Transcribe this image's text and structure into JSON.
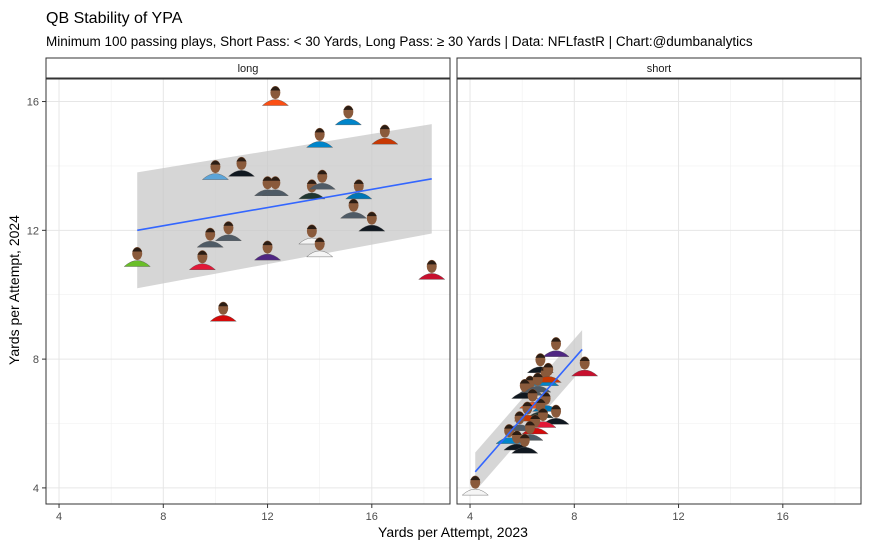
{
  "chart_data": {
    "type": "scatter",
    "title": "QB Stability of YPA",
    "subtitle": "Minimum 100 passing plays, Short Pass: < 30 Yards, Long Pass: ≥ 30 Yards | Data: NFLfastR | Chart:@dumbanalytics",
    "xlabel": "Yards per Attempt, 2023",
    "ylabel": "Yards per Attempt, 2024",
    "xlim": [
      3.5,
      19
    ],
    "ylim": [
      3.5,
      16.7
    ],
    "x_ticks": [
      "4",
      "8",
      "12",
      "16"
    ],
    "y_ticks": [
      "4",
      "8",
      "12",
      "16"
    ],
    "grid": true,
    "marker": "player-headshot",
    "panels": [
      {
        "label": "long",
        "points": [
          {
            "x": 12.3,
            "y": 16.0,
            "color": "#FB4F14"
          },
          {
            "x": 15.1,
            "y": 15.4,
            "color": "#0085CA"
          },
          {
            "x": 14.0,
            "y": 14.7,
            "color": "#0085CA"
          },
          {
            "x": 16.5,
            "y": 14.8,
            "color": "#C83803"
          },
          {
            "x": 10.0,
            "y": 13.7,
            "color": "#5CA5D9"
          },
          {
            "x": 11.0,
            "y": 13.8,
            "color": "#101820"
          },
          {
            "x": 12.0,
            "y": 13.2,
            "color": "#4F5B66"
          },
          {
            "x": 12.3,
            "y": 13.2,
            "color": "#4F5B66"
          },
          {
            "x": 13.7,
            "y": 13.1,
            "color": "#203731"
          },
          {
            "x": 15.5,
            "y": 13.1,
            "color": "#0076B6"
          },
          {
            "x": 14.1,
            "y": 13.4,
            "color": "#4F5B66"
          },
          {
            "x": 15.3,
            "y": 12.5,
            "color": "#4F5B66"
          },
          {
            "x": 16.0,
            "y": 12.1,
            "color": "#101820"
          },
          {
            "x": 9.8,
            "y": 11.6,
            "color": "#4F5B66"
          },
          {
            "x": 10.5,
            "y": 11.8,
            "color": "#4F5B66"
          },
          {
            "x": 12.0,
            "y": 11.2,
            "color": "#4F2683"
          },
          {
            "x": 13.7,
            "y": 11.7,
            "color": "#F5F5F5"
          },
          {
            "x": 14.0,
            "y": 11.3,
            "color": "#F5F5F5"
          },
          {
            "x": 7.0,
            "y": 11.0,
            "color": "#69BE28"
          },
          {
            "x": 9.5,
            "y": 10.9,
            "color": "#E31837"
          },
          {
            "x": 18.3,
            "y": 10.6,
            "color": "#C8102E"
          },
          {
            "x": 10.3,
            "y": 9.3,
            "color": "#D50A0A"
          }
        ],
        "trend": {
          "x": [
            7.0,
            18.3
          ],
          "y": [
            12.0,
            13.6
          ],
          "band_lower": [
            10.2,
            11.9
          ],
          "band_upper": [
            13.8,
            15.3
          ]
        }
      },
      {
        "label": "short",
        "points": [
          {
            "x": 7.3,
            "y": 8.2,
            "color": "#4F2683"
          },
          {
            "x": 8.4,
            "y": 7.6,
            "color": "#C8102E"
          },
          {
            "x": 6.7,
            "y": 7.7,
            "color": "#101820"
          },
          {
            "x": 6.9,
            "y": 7.3,
            "color": "#0085CA"
          },
          {
            "x": 7.0,
            "y": 7.4,
            "color": "#C83803"
          },
          {
            "x": 6.3,
            "y": 7.0,
            "color": "#4F5B66"
          },
          {
            "x": 6.1,
            "y": 6.9,
            "color": "#101820"
          },
          {
            "x": 6.6,
            "y": 7.1,
            "color": "#4F5B66"
          },
          {
            "x": 6.4,
            "y": 6.6,
            "color": "#FB4F14"
          },
          {
            "x": 6.9,
            "y": 6.5,
            "color": "#0076B6"
          },
          {
            "x": 7.3,
            "y": 6.1,
            "color": "#101820"
          },
          {
            "x": 6.7,
            "y": 6.3,
            "color": "#203731"
          },
          {
            "x": 6.2,
            "y": 6.2,
            "color": "#C83803"
          },
          {
            "x": 6.8,
            "y": 6.0,
            "color": "#E31837"
          },
          {
            "x": 5.9,
            "y": 5.9,
            "color": "#4F5B66"
          },
          {
            "x": 6.5,
            "y": 5.8,
            "color": "#D50A0A"
          },
          {
            "x": 5.5,
            "y": 5.5,
            "color": "#0085CA"
          },
          {
            "x": 6.3,
            "y": 5.6,
            "color": "#4F5B66"
          },
          {
            "x": 5.8,
            "y": 5.3,
            "color": "#101820"
          },
          {
            "x": 6.1,
            "y": 5.2,
            "color": "#101820"
          },
          {
            "x": 4.2,
            "y": 3.9,
            "color": "#F5F5F5"
          }
        ],
        "trend": {
          "x": [
            4.2,
            8.3
          ],
          "y": [
            4.5,
            8.3
          ],
          "band_lower": [
            3.9,
            7.7
          ],
          "band_upper": [
            5.1,
            8.9
          ]
        }
      }
    ]
  }
}
